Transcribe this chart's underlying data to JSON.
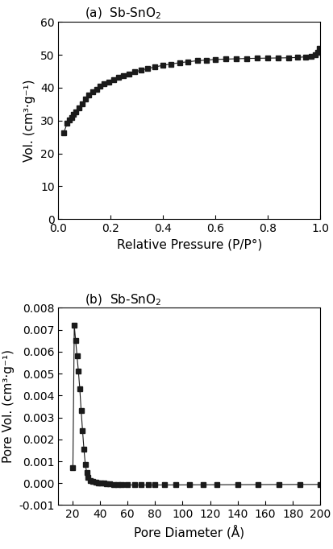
{
  "plot_a": {
    "title_left": "(a)  Sb-SnO",
    "title_sub": "2",
    "xlabel": "Relative Pressure (P/P°)",
    "ylabel": "Vol. (cm³·g⁻¹)",
    "xlim": [
      0.0,
      1.0
    ],
    "ylim": [
      0,
      60
    ],
    "xticks": [
      0.0,
      0.2,
      0.4,
      0.6,
      0.8,
      1.0
    ],
    "xticklabels": [
      "0.0",
      "0.2",
      "0.4",
      "0.6",
      "0.8",
      "1.0"
    ],
    "yticks": [
      0,
      10,
      20,
      30,
      40,
      50,
      60
    ],
    "x": [
      0.02,
      0.033,
      0.042,
      0.05,
      0.058,
      0.067,
      0.078,
      0.09,
      0.102,
      0.115,
      0.13,
      0.145,
      0.16,
      0.175,
      0.192,
      0.21,
      0.228,
      0.248,
      0.268,
      0.29,
      0.315,
      0.34,
      0.368,
      0.398,
      0.43,
      0.462,
      0.495,
      0.53,
      0.565,
      0.6,
      0.64,
      0.68,
      0.72,
      0.76,
      0.8,
      0.84,
      0.878,
      0.912,
      0.944,
      0.966,
      0.98,
      0.99,
      0.996
    ],
    "y": [
      26.2,
      29.1,
      30.2,
      31.0,
      31.8,
      32.7,
      33.8,
      35.0,
      36.5,
      37.8,
      38.8,
      39.6,
      40.4,
      41.1,
      41.8,
      42.5,
      43.1,
      43.7,
      44.2,
      44.8,
      45.3,
      45.8,
      46.3,
      46.8,
      47.2,
      47.6,
      47.9,
      48.2,
      48.4,
      48.6,
      48.7,
      48.8,
      48.9,
      48.95,
      49.0,
      49.05,
      49.1,
      49.2,
      49.4,
      49.6,
      50.0,
      50.8,
      52.0
    ]
  },
  "plot_b": {
    "title_left": "(b)  Sb-SnO",
    "title_sub": "2",
    "xlabel": "Pore Diameter (Å)",
    "ylabel": "Pore Vol. (cm³·g⁻¹)",
    "xlim": [
      10,
      200
    ],
    "ylim": [
      -0.001,
      0.008
    ],
    "xticks": [
      20,
      40,
      60,
      80,
      100,
      120,
      140,
      160,
      180,
      200
    ],
    "xticklabels": [
      "20",
      "40",
      "60",
      "80",
      "100",
      "120",
      "140",
      "160",
      "180",
      "200"
    ],
    "yticks": [
      -0.001,
      0.0,
      0.001,
      0.002,
      0.003,
      0.004,
      0.005,
      0.006,
      0.007,
      0.008
    ],
    "yticklabels": [
      "-0.001",
      "0.000",
      "0.001",
      "0.002",
      "0.003",
      "0.004",
      "0.005",
      "0.006",
      "0.007",
      "0.008"
    ],
    "x": [
      20.5,
      21.5,
      22.5,
      23.5,
      24.5,
      25.5,
      26.5,
      27.5,
      28.5,
      29.5,
      30.5,
      31.5,
      33.0,
      35.0,
      37.0,
      39.0,
      41.0,
      43.0,
      45.0,
      47.0,
      50.0,
      53.0,
      56.0,
      60.0,
      65.0,
      70.0,
      75.0,
      80.0,
      87.0,
      95.0,
      105.0,
      115.0,
      125.0,
      140.0,
      155.0,
      170.0,
      185.0,
      200.0
    ],
    "y": [
      0.0007,
      0.0072,
      0.0065,
      0.0058,
      0.0051,
      0.0043,
      0.0033,
      0.0024,
      0.00155,
      0.00085,
      0.0005,
      0.00025,
      0.00013,
      8e-05,
      4.5e-05,
      2e-05,
      5e-06,
      -5e-06,
      -2e-05,
      -4e-05,
      -6e-05,
      -7e-05,
      -7.5e-05,
      -8e-05,
      -8.2e-05,
      -8.3e-05,
      -8.3e-05,
      -8.2e-05,
      -8e-05,
      -7.8e-05,
      -7.5e-05,
      -7.2e-05,
      -7e-05,
      -6.8e-05,
      -6.5e-05,
      -6.2e-05,
      -6e-05,
      -5.8e-05
    ]
  },
  "marker": "s",
  "markersize": 4,
  "linewidth": 0.8,
  "color": "#1a1a1a",
  "background_color": "#ffffff",
  "title_fontsize": 11,
  "label_fontsize": 11,
  "tick_fontsize": 10
}
